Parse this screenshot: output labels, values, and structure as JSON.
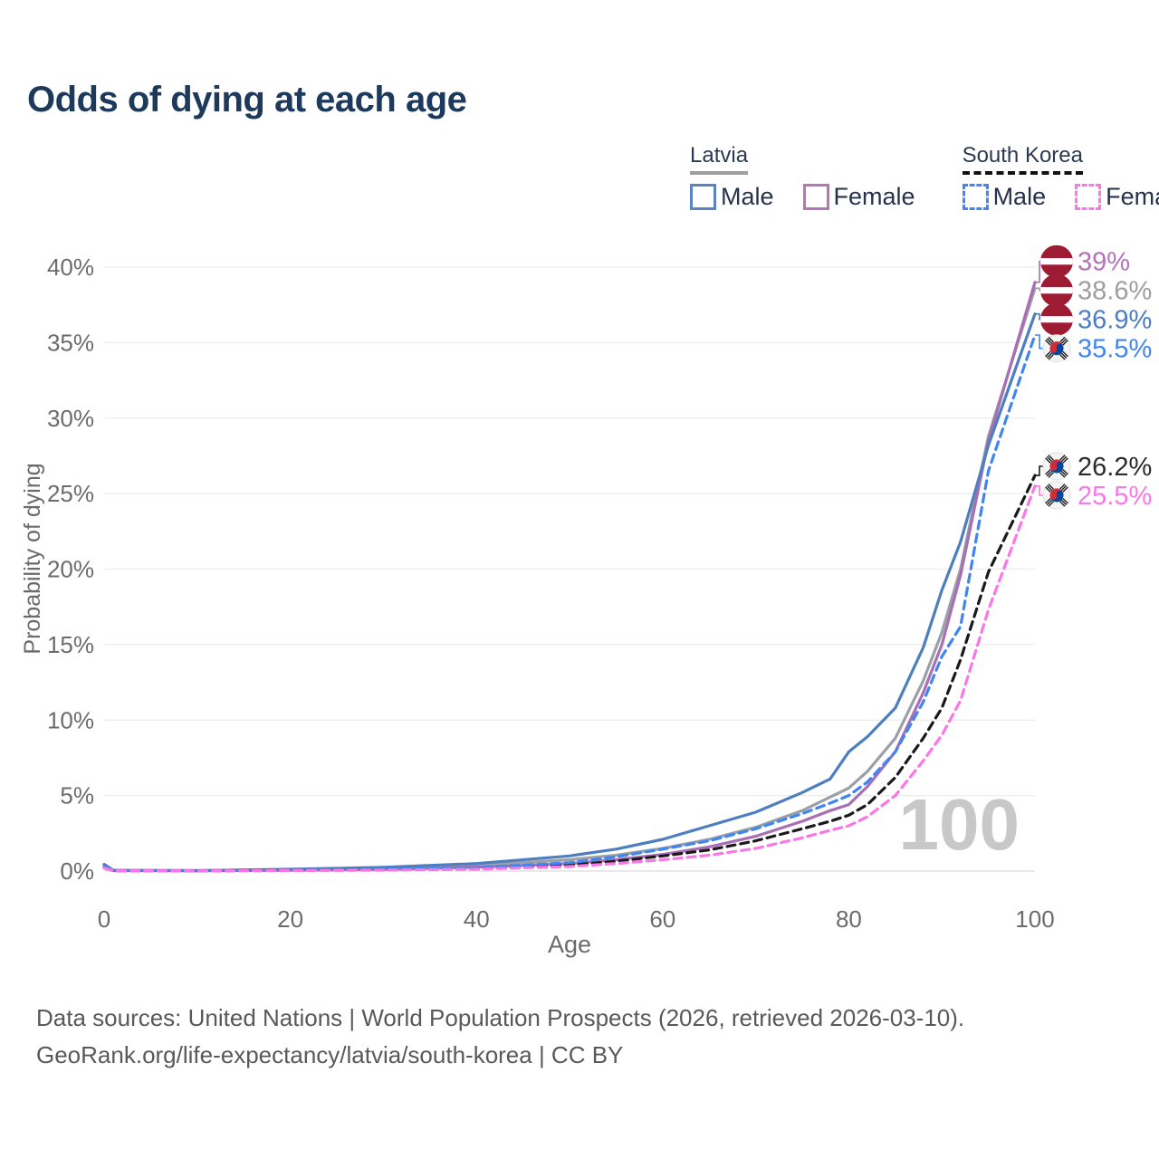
{
  "title": "Odds of dying at each age",
  "legend": {
    "groups": [
      {
        "label": "Latvia",
        "underline_style": "solid",
        "underline_color": "#9e9e9e",
        "items": [
          {
            "label": "Male",
            "color": "#5b84c4",
            "line_style": "solid"
          },
          {
            "label": "Female",
            "color": "#b476b4",
            "line_style": "solid"
          }
        ]
      },
      {
        "label": "South Korea",
        "underline_style": "dashed",
        "underline_color": "#111111",
        "items": [
          {
            "label": "Male",
            "color": "#4285f4",
            "line_style": "dashed"
          },
          {
            "label": "Female",
            "color": "#fb77e8",
            "line_style": "dashed"
          }
        ]
      }
    ]
  },
  "chart_data": {
    "type": "line",
    "title": "Odds of dying at each age",
    "xlabel": "Age",
    "ylabel": "Probability of dying",
    "xlim": [
      0,
      100
    ],
    "ylim": [
      0,
      40
    ],
    "x_ticks": [
      0,
      20,
      40,
      60,
      80,
      100
    ],
    "y_tick_labels": [
      "0%",
      "5%",
      "10%",
      "15%",
      "20%",
      "25%",
      "30%",
      "35%",
      "40%"
    ],
    "grid": "horizontal",
    "legend_position": "top-right",
    "watermark": "100",
    "x": [
      0,
      1,
      10,
      20,
      30,
      40,
      50,
      55,
      60,
      65,
      70,
      75,
      78,
      80,
      82,
      85,
      88,
      90,
      92,
      95,
      100
    ],
    "series": [
      {
        "name": "Latvia (both sexes)",
        "country": "Latvia",
        "flag": "latvia",
        "color": "#9aa0a6",
        "line_style": "solid",
        "end_label": "38.6%",
        "end_label_color": "#9e9e9e",
        "values": [
          0.37,
          0.04,
          0.03,
          0.09,
          0.18,
          0.38,
          0.75,
          1.05,
          1.5,
          2.1,
          2.9,
          4.0,
          4.9,
          5.5,
          6.6,
          8.8,
          12.6,
          15.8,
          20.0,
          28.8,
          38.6
        ]
      },
      {
        "name": "Latvia Female",
        "country": "Latvia",
        "flag": "latvia",
        "color": "#a86fb4",
        "line_style": "solid",
        "end_label": "39%",
        "end_label_color": "#b472b8",
        "values": [
          0.33,
          0.03,
          0.02,
          0.05,
          0.1,
          0.25,
          0.5,
          0.75,
          1.1,
          1.6,
          2.3,
          3.3,
          4.0,
          4.4,
          5.6,
          7.9,
          11.8,
          15.0,
          19.6,
          28.5,
          39.0
        ]
      },
      {
        "name": "Latvia Male",
        "country": "Latvia",
        "flag": "latvia",
        "color": "#4d7ec0",
        "line_style": "solid",
        "end_label": "36.9%",
        "end_label_color": "#4d7ec0",
        "values": [
          0.45,
          0.05,
          0.03,
          0.12,
          0.25,
          0.5,
          1.0,
          1.45,
          2.1,
          3.0,
          3.9,
          5.2,
          6.1,
          7.9,
          8.9,
          10.8,
          14.8,
          18.6,
          21.8,
          28.2,
          36.9
        ]
      },
      {
        "name": "South Korea (both sexes)",
        "country": "South Korea",
        "flag": "south-korea",
        "color": "#1a1a1a",
        "line_style": "dashed",
        "end_label": "26.2%",
        "end_label_color": "#2b2b2b",
        "values": [
          0.22,
          0.02,
          0.015,
          0.05,
          0.08,
          0.16,
          0.4,
          0.65,
          1.0,
          1.4,
          2.0,
          2.8,
          3.3,
          3.7,
          4.4,
          6.2,
          8.8,
          10.8,
          14.0,
          19.8,
          26.2
        ]
      },
      {
        "name": "South Korea Male",
        "country": "South Korea",
        "flag": "south-korea",
        "color": "#4186f0",
        "line_style": "dashed",
        "end_label": "35.5%",
        "end_label_color": "#4186f0",
        "values": [
          0.25,
          0.03,
          0.02,
          0.06,
          0.11,
          0.22,
          0.55,
          0.95,
          1.45,
          2.0,
          2.8,
          3.8,
          4.5,
          5.0,
          5.9,
          7.9,
          11.2,
          14.2,
          16.2,
          26.5,
          35.5
        ]
      },
      {
        "name": "South Korea Female",
        "country": "South Korea",
        "flag": "south-korea",
        "color": "#fb77e8",
        "line_style": "dashed",
        "end_label": "25.5%",
        "end_label_color": "#fb77e8",
        "values": [
          0.2,
          0.02,
          0.01,
          0.03,
          0.06,
          0.12,
          0.3,
          0.5,
          0.75,
          1.05,
          1.5,
          2.2,
          2.7,
          3.0,
          3.6,
          5.0,
          7.3,
          9.0,
          11.3,
          17.3,
          25.5
        ]
      }
    ]
  },
  "footer": {
    "line1": "Data sources: United Nations | World Population Prospects (2026, retrieved 2026-03-10).",
    "line2": "GeoRank.org/life-expectancy/latvia/south-korea | CC BY"
  }
}
